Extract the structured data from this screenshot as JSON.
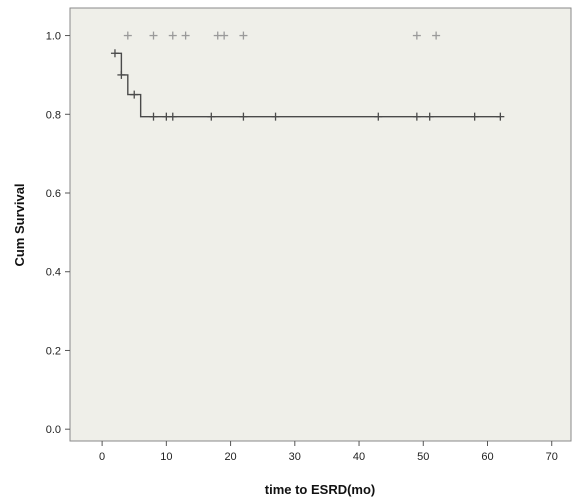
{
  "chart_data": {
    "type": "line",
    "title": "",
    "xlabel": "time to ESRD(mo)",
    "ylabel": "Cum Survival",
    "xlim": [
      -5,
      73
    ],
    "ylim": [
      -0.03,
      1.07
    ],
    "x_ticks": [
      0,
      10,
      20,
      30,
      40,
      50,
      60,
      70
    ],
    "y_ticks": [
      0.0,
      0.2,
      0.4,
      0.6,
      0.8,
      1.0
    ],
    "x_tick_labels": [
      "0",
      "10",
      "20",
      "30",
      "40",
      "50",
      "60",
      "70"
    ],
    "y_tick_labels": [
      "0.0",
      "0.2",
      "0.4",
      "0.6",
      "0.8",
      "1.0"
    ],
    "grid": false,
    "series": [
      {
        "color": "#9a9a9a",
        "style": "censor-only",
        "step": [],
        "censored": [
          {
            "x": 4,
            "y": 1.0
          },
          {
            "x": 8,
            "y": 1.0
          },
          {
            "x": 11,
            "y": 1.0
          },
          {
            "x": 13,
            "y": 1.0
          },
          {
            "x": 18,
            "y": 1.0
          },
          {
            "x": 19,
            "y": 1.0
          },
          {
            "x": 22,
            "y": 1.0
          },
          {
            "x": 49,
            "y": 1.0
          },
          {
            "x": 52,
            "y": 1.0
          }
        ]
      },
      {
        "color": "#4a4a4a",
        "style": "step",
        "step": [
          {
            "x": 2,
            "y": 0.955
          },
          {
            "x": 3,
            "y": 0.9
          },
          {
            "x": 4,
            "y": 0.85
          },
          {
            "x": 6,
            "y": 0.794
          },
          {
            "x": 62,
            "y": 0.794
          }
        ],
        "censored": [
          {
            "x": 2,
            "y": 0.955
          },
          {
            "x": 3,
            "y": 0.9
          },
          {
            "x": 5,
            "y": 0.85
          },
          {
            "x": 8,
            "y": 0.794
          },
          {
            "x": 10,
            "y": 0.794
          },
          {
            "x": 11,
            "y": 0.794
          },
          {
            "x": 17,
            "y": 0.794
          },
          {
            "x": 22,
            "y": 0.794
          },
          {
            "x": 27,
            "y": 0.794
          },
          {
            "x": 43,
            "y": 0.794
          },
          {
            "x": 49,
            "y": 0.794
          },
          {
            "x": 51,
            "y": 0.794
          },
          {
            "x": 58,
            "y": 0.794
          },
          {
            "x": 62,
            "y": 0.794
          }
        ]
      }
    ]
  }
}
